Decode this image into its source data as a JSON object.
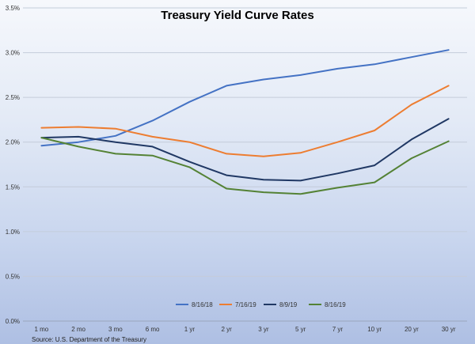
{
  "chart_data": {
    "type": "line",
    "title": "Treasury Yield Curve Rates",
    "source": "Source: U.S. Department of the Treasury",
    "categories": [
      "1 mo",
      "2 mo",
      "3 mo",
      "6 mo",
      "1 yr",
      "2 yr",
      "3 yr",
      "5 yr",
      "7 yr",
      "10 yr",
      "20 yr",
      "30 yr"
    ],
    "ylim": [
      0,
      3.5
    ],
    "yticks": [
      0,
      0.5,
      1.0,
      1.5,
      2.0,
      2.5,
      3.0,
      3.5
    ],
    "ytick_labels": [
      "0.0%",
      "0.5%",
      "1.0%",
      "1.5%",
      "2.0%",
      "2.5%",
      "3.0%",
      "3.5%"
    ],
    "grid": true,
    "legend_position": "bottom",
    "series": [
      {
        "name": "8/16/18",
        "color": "#4472c4",
        "values": [
          1.96,
          2.0,
          2.07,
          2.24,
          2.45,
          2.63,
          2.7,
          2.75,
          2.82,
          2.87,
          2.95,
          3.03
        ]
      },
      {
        "name": "7/16/19",
        "color": "#ed7d31",
        "values": [
          2.16,
          2.17,
          2.15,
          2.06,
          2.0,
          1.87,
          1.84,
          1.88,
          2.0,
          2.13,
          2.42,
          2.63
        ]
      },
      {
        "name": "8/9/19",
        "color": "#203864",
        "values": [
          2.05,
          2.06,
          2.0,
          1.95,
          1.78,
          1.63,
          1.58,
          1.57,
          1.65,
          1.74,
          2.03,
          2.26
        ]
      },
      {
        "name": "8/16/19",
        "color": "#548235",
        "values": [
          2.05,
          1.95,
          1.87,
          1.85,
          1.72,
          1.48,
          1.44,
          1.42,
          1.49,
          1.55,
          1.82,
          2.01
        ]
      }
    ]
  }
}
